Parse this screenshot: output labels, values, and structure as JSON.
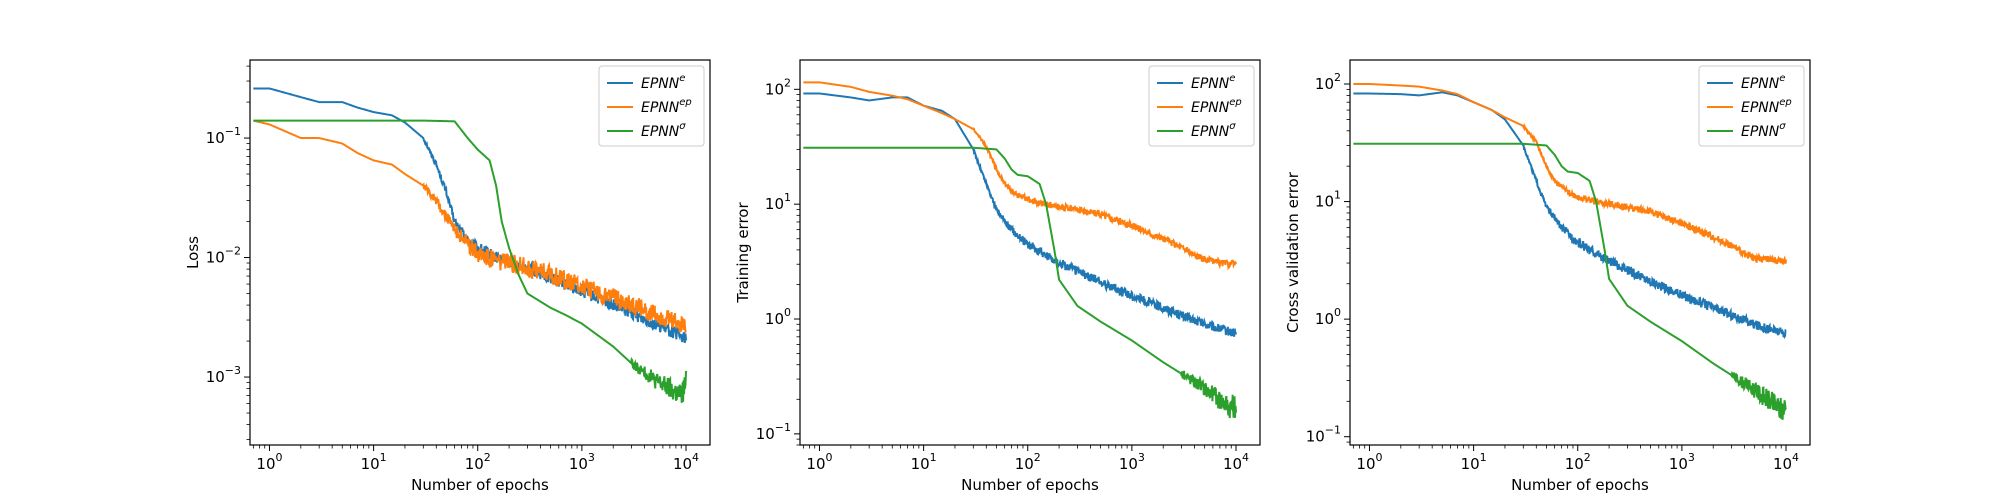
{
  "chart_data": [
    {
      "type": "line",
      "xlabel": "Number of epochs",
      "ylabel": "Loss",
      "xscale": "log",
      "yscale": "log",
      "xlim": [
        0.65,
        17000
      ],
      "ylim": [
        0.00027,
        0.45
      ],
      "xticks": [
        {
          "value": 1,
          "base": "10",
          "exp": "0"
        },
        {
          "value": 10,
          "base": "10",
          "exp": "1"
        },
        {
          "value": 100,
          "base": "10",
          "exp": "2"
        },
        {
          "value": 1000,
          "base": "10",
          "exp": "3"
        },
        {
          "value": 10000,
          "base": "10",
          "exp": "4"
        }
      ],
      "yticks": [
        {
          "value": 0.001,
          "base": "10",
          "exp": "−3"
        },
        {
          "value": 0.01,
          "base": "10",
          "exp": "−2"
        },
        {
          "value": 0.1,
          "base": "10",
          "exp": "−1"
        }
      ],
      "legend": "top-right",
      "grid": false,
      "series": [
        {
          "name": "EPNN",
          "sup": "e",
          "color": "#1f77b4",
          "x": [
            0.7,
            1,
            2,
            3,
            5,
            7,
            10,
            15,
            20,
            30,
            40,
            50,
            60,
            80,
            100,
            150,
            200,
            300,
            500,
            1000,
            2000,
            5000,
            10000
          ],
          "y": [
            0.26,
            0.26,
            0.22,
            0.2,
            0.2,
            0.18,
            0.165,
            0.155,
            0.135,
            0.1,
            0.06,
            0.035,
            0.02,
            0.014,
            0.012,
            0.01,
            0.0092,
            0.0082,
            0.0068,
            0.0052,
            0.004,
            0.0028,
            0.0021
          ],
          "noise": 0.05
        },
        {
          "name": "EPNN",
          "sup": "ep",
          "color": "#ff7f0e",
          "x": [
            0.7,
            1,
            2,
            3,
            5,
            7,
            10,
            15,
            20,
            30,
            40,
            50,
            60,
            80,
            100,
            150,
            200,
            300,
            500,
            1000,
            2000,
            5000,
            10000
          ],
          "y": [
            0.14,
            0.13,
            0.1,
            0.1,
            0.09,
            0.075,
            0.065,
            0.06,
            0.05,
            0.04,
            0.03,
            0.022,
            0.017,
            0.013,
            0.011,
            0.0095,
            0.009,
            0.0082,
            0.0072,
            0.0058,
            0.0046,
            0.0034,
            0.0027
          ],
          "noise": 0.08
        },
        {
          "name": "EPNN",
          "sup": "σ",
          "color": "#2ca02c",
          "x": [
            0.7,
            1,
            3,
            10,
            30,
            60,
            80,
            100,
            130,
            150,
            170,
            200,
            250,
            300,
            500,
            700,
            1000,
            2000,
            3000,
            5000,
            7000,
            8000,
            9000,
            10000
          ],
          "y": [
            0.14,
            0.14,
            0.14,
            0.14,
            0.14,
            0.138,
            0.1,
            0.08,
            0.065,
            0.04,
            0.02,
            0.012,
            0.007,
            0.005,
            0.0038,
            0.0033,
            0.0028,
            0.0018,
            0.0013,
            0.00095,
            0.0008,
            0.00075,
            0.0007,
            0.0009
          ],
          "noise": 0.12,
          "noise_from": 3000
        }
      ]
    },
    {
      "type": "line",
      "xlabel": "Number of epochs",
      "ylabel": "Training error",
      "xscale": "log",
      "yscale": "log",
      "xlim": [
        0.65,
        17000
      ],
      "ylim": [
        0.08,
        180
      ],
      "xticks": [
        {
          "value": 1,
          "base": "10",
          "exp": "0"
        },
        {
          "value": 10,
          "base": "10",
          "exp": "1"
        },
        {
          "value": 100,
          "base": "10",
          "exp": "2"
        },
        {
          "value": 1000,
          "base": "10",
          "exp": "3"
        },
        {
          "value": 10000,
          "base": "10",
          "exp": "4"
        }
      ],
      "yticks": [
        {
          "value": 0.1,
          "base": "10",
          "exp": "−1"
        },
        {
          "value": 1,
          "base": "10",
          "exp": "0"
        },
        {
          "value": 10,
          "base": "10",
          "exp": "1"
        },
        {
          "value": 100,
          "base": "10",
          "exp": "2"
        }
      ],
      "legend": "top-right",
      "grid": false,
      "series": [
        {
          "name": "EPNN",
          "sup": "e",
          "color": "#1f77b4",
          "x": [
            0.7,
            1,
            2,
            3,
            5,
            7,
            10,
            15,
            20,
            30,
            40,
            50,
            70,
            100,
            150,
            200,
            300,
            500,
            1000,
            2000,
            5000,
            10000
          ],
          "y": [
            92,
            92,
            85,
            80,
            85,
            85,
            72,
            65,
            55,
            30,
            15,
            9,
            6,
            4.5,
            3.6,
            3.1,
            2.6,
            2.1,
            1.6,
            1.25,
            0.9,
            0.75
          ],
          "noise": 0.04
        },
        {
          "name": "EPNN",
          "sup": "ep",
          "color": "#ff7f0e",
          "x": [
            0.7,
            1,
            2,
            3,
            5,
            7,
            10,
            15,
            20,
            30,
            40,
            50,
            60,
            80,
            100,
            150,
            200,
            300,
            500,
            1000,
            2000,
            3000,
            4000,
            5000,
            7000,
            10000
          ],
          "y": [
            115,
            115,
            105,
            95,
            88,
            82,
            72,
            62,
            55,
            45,
            32,
            20,
            15,
            12,
            11,
            10,
            9.5,
            9,
            8.2,
            6.5,
            5,
            4.2,
            3.6,
            3.3,
            3.1,
            3.0
          ],
          "noise": 0.03
        },
        {
          "name": "EPNN",
          "sup": "σ",
          "color": "#2ca02c",
          "x": [
            0.7,
            1,
            10,
            30,
            50,
            60,
            70,
            80,
            100,
            130,
            150,
            180,
            200,
            300,
            500,
            1000,
            2000,
            5000,
            7000,
            9000,
            10000
          ],
          "y": [
            31,
            31,
            31,
            31,
            30,
            25,
            20,
            18,
            17.5,
            15,
            10,
            4,
            2.2,
            1.3,
            0.95,
            0.65,
            0.42,
            0.25,
            0.2,
            0.17,
            0.18
          ],
          "noise": 0.12,
          "noise_from": 3000
        }
      ]
    },
    {
      "type": "line",
      "xlabel": "Number of epochs",
      "ylabel": "Cross validation error",
      "xscale": "log",
      "yscale": "log",
      "xlim": [
        0.65,
        17000
      ],
      "ylim": [
        0.085,
        160
      ],
      "xticks": [
        {
          "value": 1,
          "base": "10",
          "exp": "0"
        },
        {
          "value": 10,
          "base": "10",
          "exp": "1"
        },
        {
          "value": 100,
          "base": "10",
          "exp": "2"
        },
        {
          "value": 1000,
          "base": "10",
          "exp": "3"
        },
        {
          "value": 10000,
          "base": "10",
          "exp": "4"
        }
      ],
      "yticks": [
        {
          "value": 0.1,
          "base": "10",
          "exp": "−1"
        },
        {
          "value": 1,
          "base": "10",
          "exp": "0"
        },
        {
          "value": 10,
          "base": "10",
          "exp": "1"
        },
        {
          "value": 100,
          "base": "10",
          "exp": "2"
        }
      ],
      "legend": "top-right",
      "grid": false,
      "series": [
        {
          "name": "EPNN",
          "sup": "e",
          "color": "#1f77b4",
          "x": [
            0.7,
            1,
            2,
            3,
            5,
            7,
            10,
            15,
            20,
            30,
            40,
            50,
            70,
            100,
            150,
            200,
            300,
            500,
            1000,
            2000,
            5000,
            10000
          ],
          "y": [
            83,
            83,
            82,
            80,
            85,
            80,
            70,
            60,
            50,
            30,
            15,
            9,
            6,
            4.5,
            3.6,
            3.1,
            2.6,
            2.1,
            1.6,
            1.25,
            0.9,
            0.75
          ],
          "noise": 0.04
        },
        {
          "name": "EPNN",
          "sup": "ep",
          "color": "#ff7f0e",
          "x": [
            0.7,
            1,
            2,
            3,
            5,
            7,
            10,
            15,
            20,
            30,
            40,
            50,
            60,
            80,
            100,
            150,
            200,
            300,
            500,
            1000,
            2000,
            3000,
            4000,
            5000,
            7000,
            10000
          ],
          "y": [
            100,
            100,
            97,
            95,
            88,
            82,
            70,
            60,
            52,
            44,
            32,
            20,
            15,
            12,
            11,
            10,
            9.5,
            9,
            8.2,
            6.5,
            5,
            4.2,
            3.6,
            3.3,
            3.2,
            3.1
          ],
          "noise": 0.03
        },
        {
          "name": "EPNN",
          "sup": "σ",
          "color": "#2ca02c",
          "x": [
            0.7,
            1,
            10,
            30,
            50,
            60,
            70,
            80,
            100,
            130,
            150,
            180,
            200,
            300,
            500,
            1000,
            2000,
            5000,
            7000,
            9000,
            10000
          ],
          "y": [
            31,
            31,
            31,
            31,
            30,
            25,
            20,
            18,
            17.5,
            15,
            10,
            4,
            2.2,
            1.3,
            0.95,
            0.65,
            0.42,
            0.25,
            0.2,
            0.17,
            0.18
          ],
          "noise": 0.12,
          "noise_from": 3000
        }
      ]
    }
  ]
}
